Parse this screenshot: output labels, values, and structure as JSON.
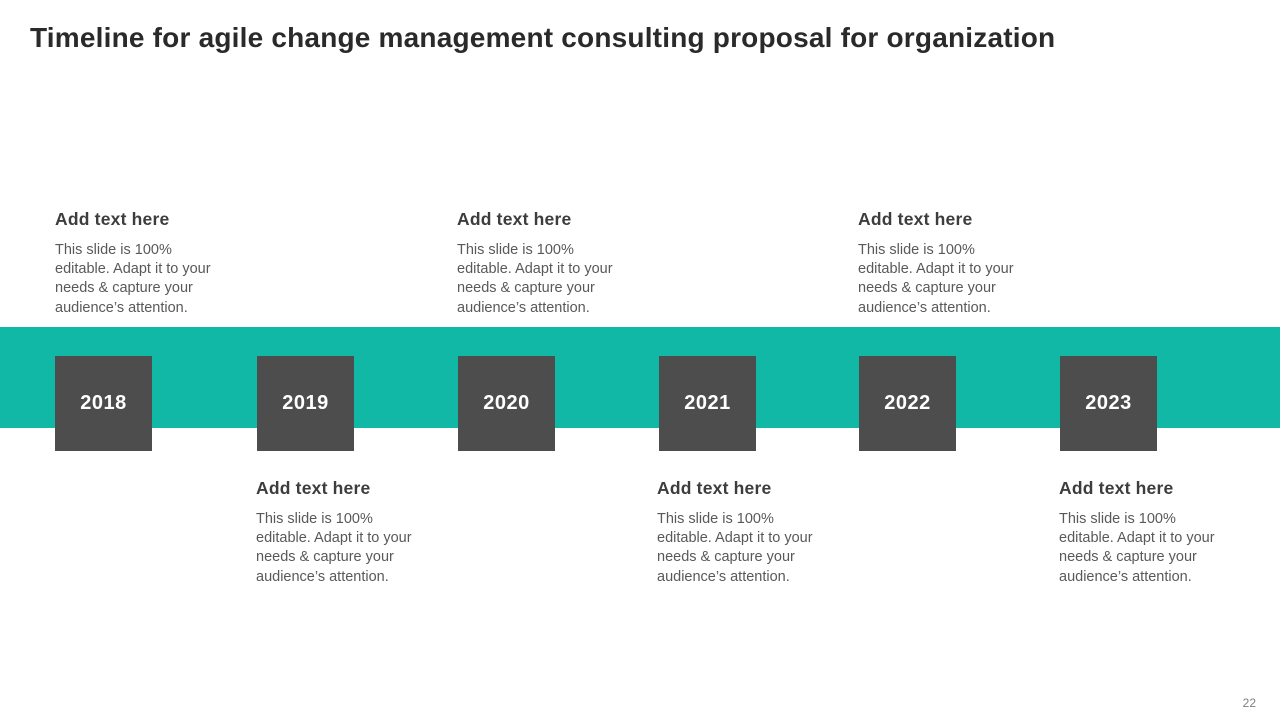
{
  "slide": {
    "title": "Timeline for agile change management consulting proposal for organization",
    "page_number": "22"
  },
  "colors": {
    "accent_teal": "#12b8a6",
    "box_gray": "#4d4d4d",
    "title_color": "#2a2a2a",
    "heading_color": "#3d3d3d",
    "body_color": "#595959",
    "pagenum_color": "#808080"
  },
  "timeline": {
    "years": [
      "2018",
      "2019",
      "2020",
      "2021",
      "2022",
      "2023"
    ]
  },
  "blocks": [
    {
      "year": "2018",
      "position": "top",
      "heading": "Add text here",
      "body_lines": [
        "This slide is 100%",
        "editable. Adapt it to your",
        "needs & capture your",
        "audience’s attention."
      ]
    },
    {
      "year": "2019",
      "position": "bottom",
      "heading": "Add text here",
      "body_lines": [
        "This slide is 100%",
        "editable. Adapt it to your",
        "needs & capture your",
        "audience’s attention."
      ]
    },
    {
      "year": "2020",
      "position": "top",
      "heading": "Add text here",
      "body_lines": [
        "This slide is 100%",
        "editable. Adapt it to your",
        "needs & capture your",
        "audience’s attention."
      ]
    },
    {
      "year": "2021",
      "position": "bottom",
      "heading": "Add text here",
      "body_lines": [
        "This slide is 100%",
        "editable. Adapt it to your",
        "needs & capture your",
        "audience’s attention."
      ]
    },
    {
      "year": "2022",
      "position": "top",
      "heading": "Add text here",
      "body_lines": [
        "This slide is 100%",
        "editable. Adapt it to your",
        "needs & capture your",
        "audience’s attention."
      ]
    },
    {
      "year": "2023",
      "position": "bottom",
      "heading": "Add text here",
      "body_lines": [
        "This slide is 100%",
        "editable. Adapt it to your",
        "needs & capture your",
        "audience’s attention."
      ]
    }
  ]
}
